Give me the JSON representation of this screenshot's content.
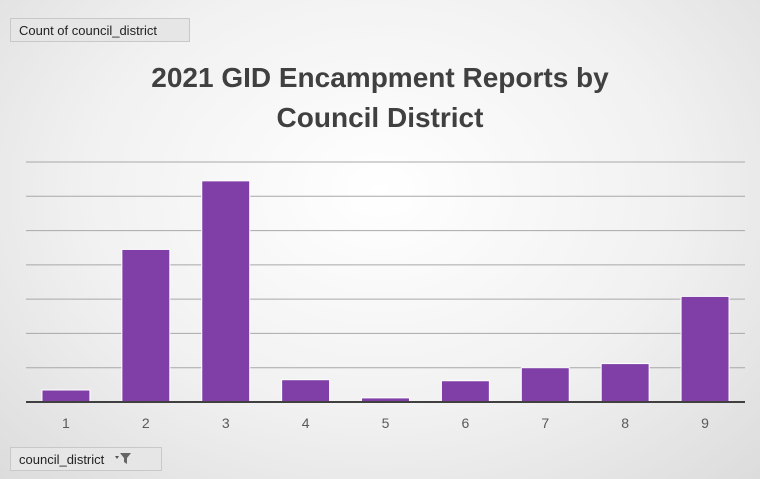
{
  "value_field_label": "Count of council_district",
  "axis_field_label": "council_district",
  "filter_icon": "filter-funnel-icon",
  "colors": {
    "bar": "#7f3fa7",
    "grid": "#a8a8a8",
    "axis": "#404040",
    "tick_label": "#595959"
  },
  "chart_data": {
    "type": "bar",
    "title_lines": [
      "2021 GID Encampment Reports by",
      "Council District"
    ],
    "categories": [
      "1",
      "2",
      "3",
      "4",
      "5",
      "6",
      "7",
      "8",
      "9"
    ],
    "values": [
      0.35,
      4.45,
      6.45,
      0.65,
      0.12,
      0.62,
      1.0,
      1.12,
      3.08
    ],
    "ylim": [
      0,
      7
    ],
    "gridlines": 7,
    "y_tick_labels_shown": false,
    "legend": "none",
    "xlabel": "",
    "ylabel": ""
  }
}
